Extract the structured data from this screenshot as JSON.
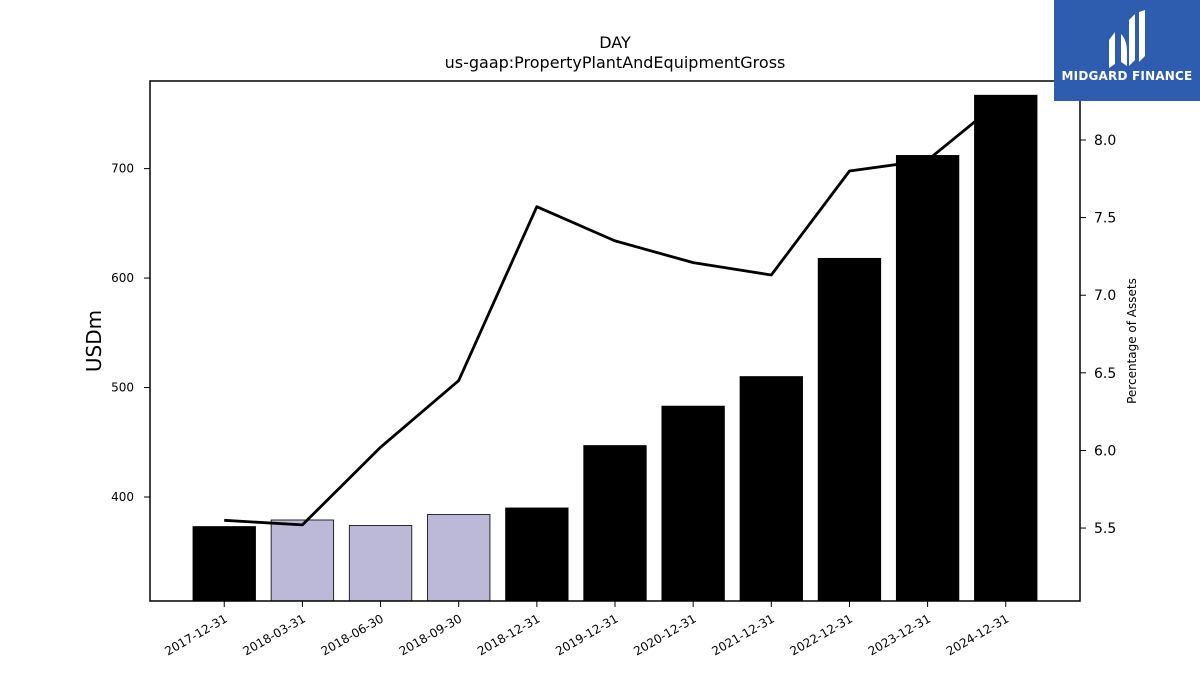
{
  "chart_data": {
    "type": "bar",
    "title": "DAY",
    "subtitle": "us-gaap:PropertyPlantAndEquipmentGross",
    "ylabel": "USDm",
    "y2label": "Percentage of Assets",
    "categories": [
      "2017-12-31",
      "2018-03-31",
      "2018-06-30",
      "2018-09-30",
      "2018-12-31",
      "2019-12-31",
      "2020-12-31",
      "2021-12-31",
      "2022-12-31",
      "2023-12-31",
      "2024-12-31"
    ],
    "series": [
      {
        "values": [
          373,
          379,
          374,
          384,
          390,
          447,
          483,
          510,
          618,
          712,
          767
        ],
        "colors": [
          "#000000",
          "#bcb8d8",
          "#bcb8d8",
          "#bcb8d8",
          "#000000",
          "#000000",
          "#000000",
          "#000000",
          "#000000",
          "#000000",
          "#000000"
        ]
      },
      {
        "axis": "right",
        "values": [
          5.55,
          5.52,
          6.02,
          6.45,
          7.57,
          7.35,
          7.21,
          7.13,
          7.8,
          7.87,
          8.28
        ],
        "color": "#000000"
      }
    ],
    "ylim": [
      305,
      780
    ],
    "y2lim": [
      5.03,
      8.38
    ],
    "yticks": [
      400,
      500,
      600,
      700
    ],
    "y2ticks": [
      "5.5",
      "6.0",
      "6.5",
      "7.0",
      "7.5",
      "8.0"
    ],
    "grid": false
  },
  "logo": {
    "text": "MIDGARD FINANCE"
  }
}
